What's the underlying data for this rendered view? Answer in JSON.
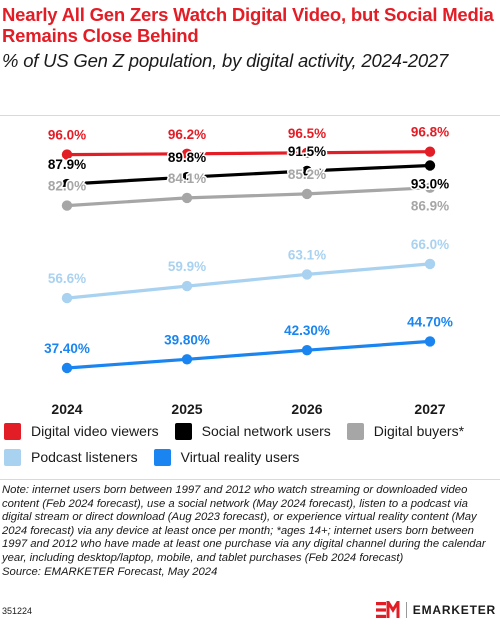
{
  "header": {
    "title": "Nearly All Gen Zers Watch Digital Video, but Social Media Remains Close Behind",
    "subtitle": "% of US Gen Z population, by digital activity, 2024-2027"
  },
  "chart_data": {
    "type": "line",
    "x": [
      "2024",
      "2025",
      "2026",
      "2027"
    ],
    "ylim": [
      30,
      100
    ],
    "grid": false,
    "legend_position": "bottom",
    "series": [
      {
        "name": "Digital video viewers",
        "color": "#e31d26",
        "values": [
          96.0,
          96.2,
          96.5,
          96.8
        ],
        "labels": [
          "96.0%",
          "96.2%",
          "96.5%",
          "96.8%"
        ],
        "label_color": "#e31d26"
      },
      {
        "name": "Social network users",
        "color": "#000000",
        "values": [
          87.9,
          89.8,
          91.5,
          93.0
        ],
        "labels": [
          "87.9%",
          "89.8%",
          "91.5%",
          "93.0%"
        ],
        "label_color": "#000000"
      },
      {
        "name": "Digital buyers*",
        "color": "#a6a6a6",
        "values": [
          82.0,
          84.1,
          85.2,
          86.9
        ],
        "labels": [
          "82.0%",
          "84.1%",
          "85.2%",
          "86.9%"
        ],
        "label_color": "#a6a6a6"
      },
      {
        "name": "Podcast listeners",
        "color": "#a9d2f0",
        "values": [
          56.6,
          59.9,
          63.1,
          66.0
        ],
        "labels": [
          "56.6%",
          "59.9%",
          "63.1%",
          "66.0%"
        ],
        "label_color": "#a9d2f0"
      },
      {
        "name": "Virtual reality users",
        "color": "#1a85f0",
        "values": [
          37.4,
          39.8,
          42.3,
          44.7
        ],
        "labels": [
          "37.40%",
          "39.80%",
          "42.30%",
          "44.70%"
        ],
        "label_color": "#1a85f0"
      }
    ]
  },
  "legend": {
    "rows": [
      [
        {
          "label": "Digital video viewers",
          "color": "#e31d26"
        },
        {
          "label": "Social network users",
          "color": "#000000"
        },
        {
          "label": "Digital buyers*",
          "color": "#a6a6a6"
        }
      ],
      [
        {
          "label": "Podcast listeners",
          "color": "#a9d2f0"
        },
        {
          "label": "Virtual reality users",
          "color": "#1a85f0"
        }
      ]
    ]
  },
  "footer": {
    "note": "Note: internet users born between 1997 and 2012 who watch streaming or downloaded video content (Feb 2024 forecast), use a social network (May 2024 forecast), listen to a podcast via digital stream or direct download (Aug 2023 forecast), or experience virtual reality content (May 2024 forecast) via any device at least once per month; *ages 14+; internet users born between 1997 and 2012 who have made at least one purchase via any digital channel during the calendar year, including desktop/laptop, mobile, and tablet purchases (Feb 2024 forecast)",
    "source": "Source: EMARKETER Forecast, May 2024",
    "chart_id": "351224",
    "brand": "EMARKETER",
    "brand_color": "#e31d26"
  }
}
